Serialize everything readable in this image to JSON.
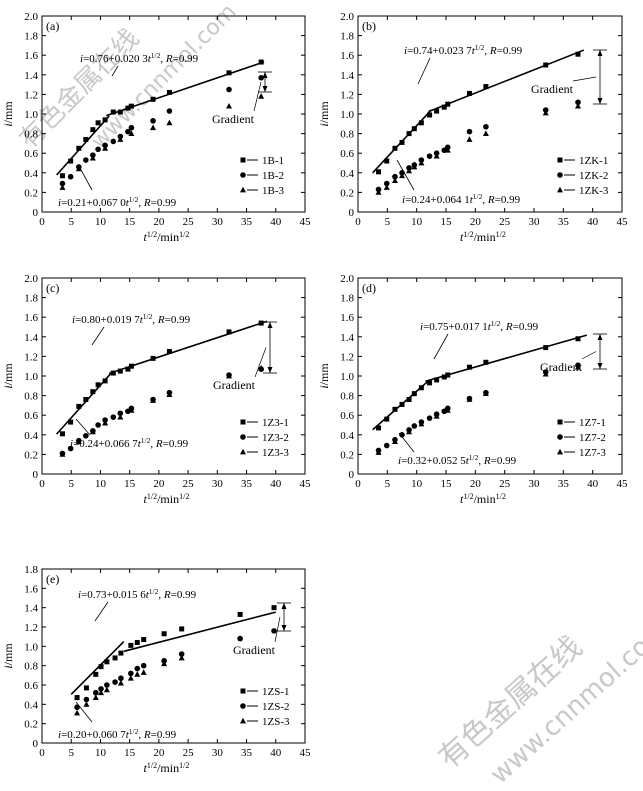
{
  "watermark": {
    "cn": "有色金属在线",
    "url": "www.cnnmol.com",
    "color": "#c8c8c8"
  },
  "chart_data": [
    {
      "type": "scatter",
      "panel_label": "(a)",
      "xlabel": "t1/2/min1/2",
      "ylabel": "i/mm",
      "xlim": [
        0,
        45
      ],
      "ylim": [
        0,
        2.0
      ],
      "xticks": [
        0,
        5,
        10,
        15,
        20,
        25,
        30,
        35,
        40,
        45
      ],
      "yticks": [
        0,
        0.2,
        0.4,
        0.6,
        0.8,
        1.0,
        1.2,
        1.4,
        1.6,
        1.8,
        2.0
      ],
      "series": [
        {
          "name": "1B-1",
          "marker": "square",
          "x": [
            3.5,
            4.9,
            6.3,
            7.5,
            8.7,
            9.6,
            10.8,
            12.2,
            13.4,
            14.7,
            15.3,
            19.0,
            21.8,
            32.0,
            37.5
          ],
          "y": [
            0.37,
            0.52,
            0.65,
            0.74,
            0.84,
            0.91,
            0.94,
            1.02,
            1.02,
            1.06,
            1.08,
            1.15,
            1.22,
            1.42,
            1.53
          ]
        },
        {
          "name": "1B-2",
          "marker": "circle",
          "x": [
            3.5,
            4.9,
            6.3,
            7.5,
            8.7,
            9.6,
            10.8,
            12.2,
            13.4,
            14.7,
            15.3,
            19.0,
            21.8,
            32.0,
            37.5
          ],
          "y": [
            0.29,
            0.36,
            0.46,
            0.53,
            0.58,
            0.64,
            0.68,
            0.72,
            0.77,
            0.82,
            0.86,
            0.93,
            1.03,
            1.25,
            1.37
          ]
        },
        {
          "name": "1B-3",
          "marker": "triangle",
          "x": [
            3.5,
            6.3,
            8.7,
            10.8,
            13.4,
            15.3,
            19.0,
            21.8,
            32.0,
            37.5
          ],
          "y": [
            0.25,
            0.44,
            0.55,
            0.65,
            0.74,
            0.8,
            0.86,
            0.91,
            1.08,
            1.18
          ]
        }
      ],
      "fit_lines": [
        {
          "label": "i=0.76+0.020 3t1/2, R=0.99",
          "intercept": 0.76,
          "slope": 0.0203,
          "x_range": [
            11,
            38
          ]
        },
        {
          "label": "i=0.21+0.067 0t1/2, R=0.99",
          "intercept": 0.21,
          "slope": 0.067,
          "x_range": [
            2.5,
            11.5
          ]
        }
      ],
      "annotation": "Gradient",
      "legend_position": "bottom-right"
    },
    {
      "type": "scatter",
      "panel_label": "(b)",
      "xlabel": "t1/2/min1/2",
      "ylabel": "i/mm",
      "xlim": [
        0,
        45
      ],
      "ylim": [
        0,
        2.0
      ],
      "xticks": [
        0,
        5,
        10,
        15,
        20,
        25,
        30,
        35,
        40,
        45
      ],
      "yticks": [
        0,
        0.2,
        0.4,
        0.6,
        0.8,
        1.0,
        1.2,
        1.4,
        1.6,
        1.8,
        2.0
      ],
      "series": [
        {
          "name": "1ZK-1",
          "marker": "square",
          "x": [
            3.5,
            4.9,
            6.3,
            7.5,
            8.7,
            9.6,
            10.8,
            12.2,
            13.4,
            14.7,
            15.3,
            19.0,
            21.8,
            32.0,
            37.5
          ],
          "y": [
            0.41,
            0.52,
            0.65,
            0.71,
            0.8,
            0.85,
            0.91,
            0.99,
            1.03,
            1.07,
            1.1,
            1.21,
            1.28,
            1.5,
            1.61
          ]
        },
        {
          "name": "1ZK-2",
          "marker": "circle",
          "x": [
            3.5,
            4.9,
            6.3,
            7.5,
            8.7,
            9.6,
            10.8,
            12.2,
            13.4,
            14.7,
            15.3,
            19.0,
            21.8,
            32.0,
            37.5
          ],
          "y": [
            0.23,
            0.29,
            0.36,
            0.4,
            0.45,
            0.48,
            0.53,
            0.57,
            0.6,
            0.63,
            0.66,
            0.82,
            0.87,
            1.04,
            1.12
          ]
        },
        {
          "name": "1ZK-3",
          "marker": "triangle",
          "x": [
            3.5,
            4.9,
            6.3,
            7.5,
            8.7,
            9.6,
            10.8,
            13.4,
            15.3,
            19.0,
            21.8,
            32.0,
            37.5
          ],
          "y": [
            0.2,
            0.25,
            0.32,
            0.37,
            0.42,
            0.46,
            0.5,
            0.57,
            0.63,
            0.74,
            0.8,
            1.01,
            1.08
          ]
        }
      ],
      "fit_lines": [
        {
          "label": "i=0.74+0.023 7t1/2, R=0.99",
          "intercept": 0.74,
          "slope": 0.0237,
          "x_range": [
            12,
            38.5
          ]
        },
        {
          "label": "i=0.24+0.064 1t1/2, R=0.99",
          "intercept": 0.24,
          "slope": 0.0641,
          "x_range": [
            2.5,
            12.5
          ]
        }
      ],
      "annotation": "Gradient",
      "legend_position": "bottom-right"
    },
    {
      "type": "scatter",
      "panel_label": "(c)",
      "xlabel": "t1/2/min1/2",
      "ylabel": "i/mm",
      "xlim": [
        0,
        45
      ],
      "ylim": [
        0,
        2.0
      ],
      "xticks": [
        0,
        5,
        10,
        15,
        20,
        25,
        30,
        35,
        40,
        45
      ],
      "yticks": [
        0,
        0.2,
        0.4,
        0.6,
        0.8,
        1.0,
        1.2,
        1.4,
        1.6,
        1.8,
        2.0
      ],
      "series": [
        {
          "name": "1Z3-1",
          "marker": "square",
          "x": [
            3.5,
            4.9,
            6.3,
            7.5,
            8.7,
            9.6,
            10.8,
            12.2,
            13.4,
            14.7,
            15.3,
            19.0,
            21.8,
            32.0,
            37.5
          ],
          "y": [
            0.41,
            0.53,
            0.69,
            0.76,
            0.84,
            0.91,
            0.95,
            1.03,
            1.05,
            1.07,
            1.1,
            1.18,
            1.25,
            1.45,
            1.54
          ]
        },
        {
          "name": "1Z3-2",
          "marker": "circle",
          "x": [
            3.5,
            4.9,
            6.3,
            7.5,
            8.7,
            9.6,
            10.8,
            12.2,
            13.4,
            14.7,
            15.3,
            19.0,
            21.8,
            32.0,
            37.5
          ],
          "y": [
            0.21,
            0.26,
            0.34,
            0.39,
            0.44,
            0.5,
            0.55,
            0.58,
            0.62,
            0.64,
            0.67,
            0.76,
            0.83,
            1.01,
            1.07
          ]
        },
        {
          "name": "1Z3-3",
          "marker": "triangle",
          "x": [
            3.5,
            6.3,
            8.7,
            10.8,
            13.4,
            15.3,
            19.0,
            21.8,
            32.0,
            37.5
          ],
          "y": [
            0.2,
            0.33,
            0.43,
            0.52,
            0.58,
            0.65,
            0.75,
            0.81,
            1.0,
            1.08
          ]
        }
      ],
      "fit_lines": [
        {
          "label": "i=0.80+0.019 7t1/2, R=0.99",
          "intercept": 0.8,
          "slope": 0.0197,
          "x_range": [
            11.5,
            38.5
          ]
        },
        {
          "label": "i=0.24+0.066 7t1/2, R=0.99",
          "intercept": 0.24,
          "slope": 0.0667,
          "x_range": [
            2.5,
            12
          ]
        }
      ],
      "annotation": "Gradient",
      "legend_position": "bottom-right"
    },
    {
      "type": "scatter",
      "panel_label": "(d)",
      "xlabel": "t1/2/min1/2",
      "ylabel": "i/mm",
      "xlim": [
        0,
        45
      ],
      "ylim": [
        0,
        2.0
      ],
      "xticks": [
        0,
        5,
        10,
        15,
        20,
        25,
        30,
        35,
        40,
        45
      ],
      "yticks": [
        0,
        0.2,
        0.4,
        0.6,
        0.8,
        1.0,
        1.2,
        1.4,
        1.6,
        1.8,
        2.0
      ],
      "series": [
        {
          "name": "1Z7-1",
          "marker": "square",
          "x": [
            3.5,
            4.9,
            6.3,
            7.5,
            8.7,
            9.6,
            10.8,
            12.2,
            13.4,
            14.7,
            15.3,
            19.0,
            21.8,
            32.0,
            37.5
          ],
          "y": [
            0.47,
            0.56,
            0.66,
            0.71,
            0.76,
            0.82,
            0.88,
            0.93,
            0.96,
            0.99,
            1.01,
            1.09,
            1.14,
            1.29,
            1.38
          ]
        },
        {
          "name": "1Z7-2",
          "marker": "circle",
          "x": [
            3.5,
            4.9,
            6.3,
            7.5,
            8.7,
            9.6,
            10.8,
            12.2,
            13.4,
            14.7,
            15.3,
            19.0,
            21.8,
            32.0,
            37.5
          ],
          "y": [
            0.24,
            0.29,
            0.35,
            0.4,
            0.45,
            0.49,
            0.53,
            0.57,
            0.61,
            0.64,
            0.67,
            0.77,
            0.83,
            1.04,
            1.11
          ]
        },
        {
          "name": "1Z7-3",
          "marker": "triangle",
          "x": [
            3.5,
            6.3,
            8.7,
            10.8,
            13.4,
            15.3,
            19.0,
            21.8,
            32.0,
            37.5
          ],
          "y": [
            0.22,
            0.33,
            0.43,
            0.51,
            0.59,
            0.65,
            0.76,
            0.82,
            1.02,
            1.09
          ]
        }
      ],
      "fit_lines": [
        {
          "label": "i=0.75+0.017 1t1/2, R=0.99",
          "intercept": 0.75,
          "slope": 0.0171,
          "x_range": [
            11.5,
            39
          ]
        },
        {
          "label": "i=0.32+0.052 5t1/2, R=0.99",
          "intercept": 0.32,
          "slope": 0.0525,
          "x_range": [
            2.5,
            12
          ]
        }
      ],
      "annotation": "Gradient",
      "legend_position": "bottom-right"
    },
    {
      "type": "scatter",
      "panel_label": "(e)",
      "xlabel": "t1/2/min1/2",
      "ylabel": "i/mm",
      "xlim": [
        0,
        45
      ],
      "ylim": [
        0,
        1.8
      ],
      "xticks": [
        0,
        5,
        10,
        15,
        20,
        25,
        30,
        35,
        40,
        45
      ],
      "yticks": [
        0,
        0.2,
        0.4,
        0.6,
        0.8,
        1.0,
        1.2,
        1.4,
        1.6,
        1.8
      ],
      "series": [
        {
          "name": "1ZS-1",
          "marker": "square",
          "x": [
            6.0,
            7.6,
            9.2,
            10.1,
            11.1,
            12.5,
            13.5,
            15.2,
            16.3,
            17.4,
            20.9,
            23.9,
            33.9,
            39.7
          ],
          "y": [
            0.47,
            0.57,
            0.71,
            0.79,
            0.84,
            0.88,
            0.93,
            1.01,
            1.04,
            1.07,
            1.13,
            1.18,
            1.33,
            1.4
          ]
        },
        {
          "name": "1ZS-2",
          "marker": "circle",
          "x": [
            6.0,
            7.6,
            9.2,
            10.1,
            11.1,
            12.5,
            13.5,
            15.2,
            16.3,
            17.4,
            20.9,
            23.9,
            33.9,
            39.7
          ],
          "y": [
            0.37,
            0.45,
            0.52,
            0.56,
            0.6,
            0.63,
            0.67,
            0.72,
            0.77,
            0.8,
            0.85,
            0.92,
            1.08,
            1.16
          ]
        },
        {
          "name": "1ZS-3",
          "marker": "triangle",
          "x": [
            6.0,
            7.6,
            9.2,
            10.1,
            11.1,
            13.5,
            15.2,
            16.3,
            17.4,
            20.9,
            23.9
          ],
          "y": [
            0.31,
            0.4,
            0.47,
            0.52,
            0.55,
            0.62,
            0.67,
            0.71,
            0.73,
            0.82,
            0.88
          ]
        }
      ],
      "fit_lines": [
        {
          "label": "i=0.73+0.015 6t1/2, R=0.99",
          "intercept": 0.73,
          "slope": 0.0156,
          "x_range": [
            14,
            40
          ]
        },
        {
          "label": "i=0.20+0.060 7t1/2, R=0.99",
          "intercept": 0.2,
          "slope": 0.0607,
          "x_range": [
            5,
            14
          ]
        }
      ],
      "annotation": "Gradient",
      "legend_position": "bottom-right"
    }
  ]
}
